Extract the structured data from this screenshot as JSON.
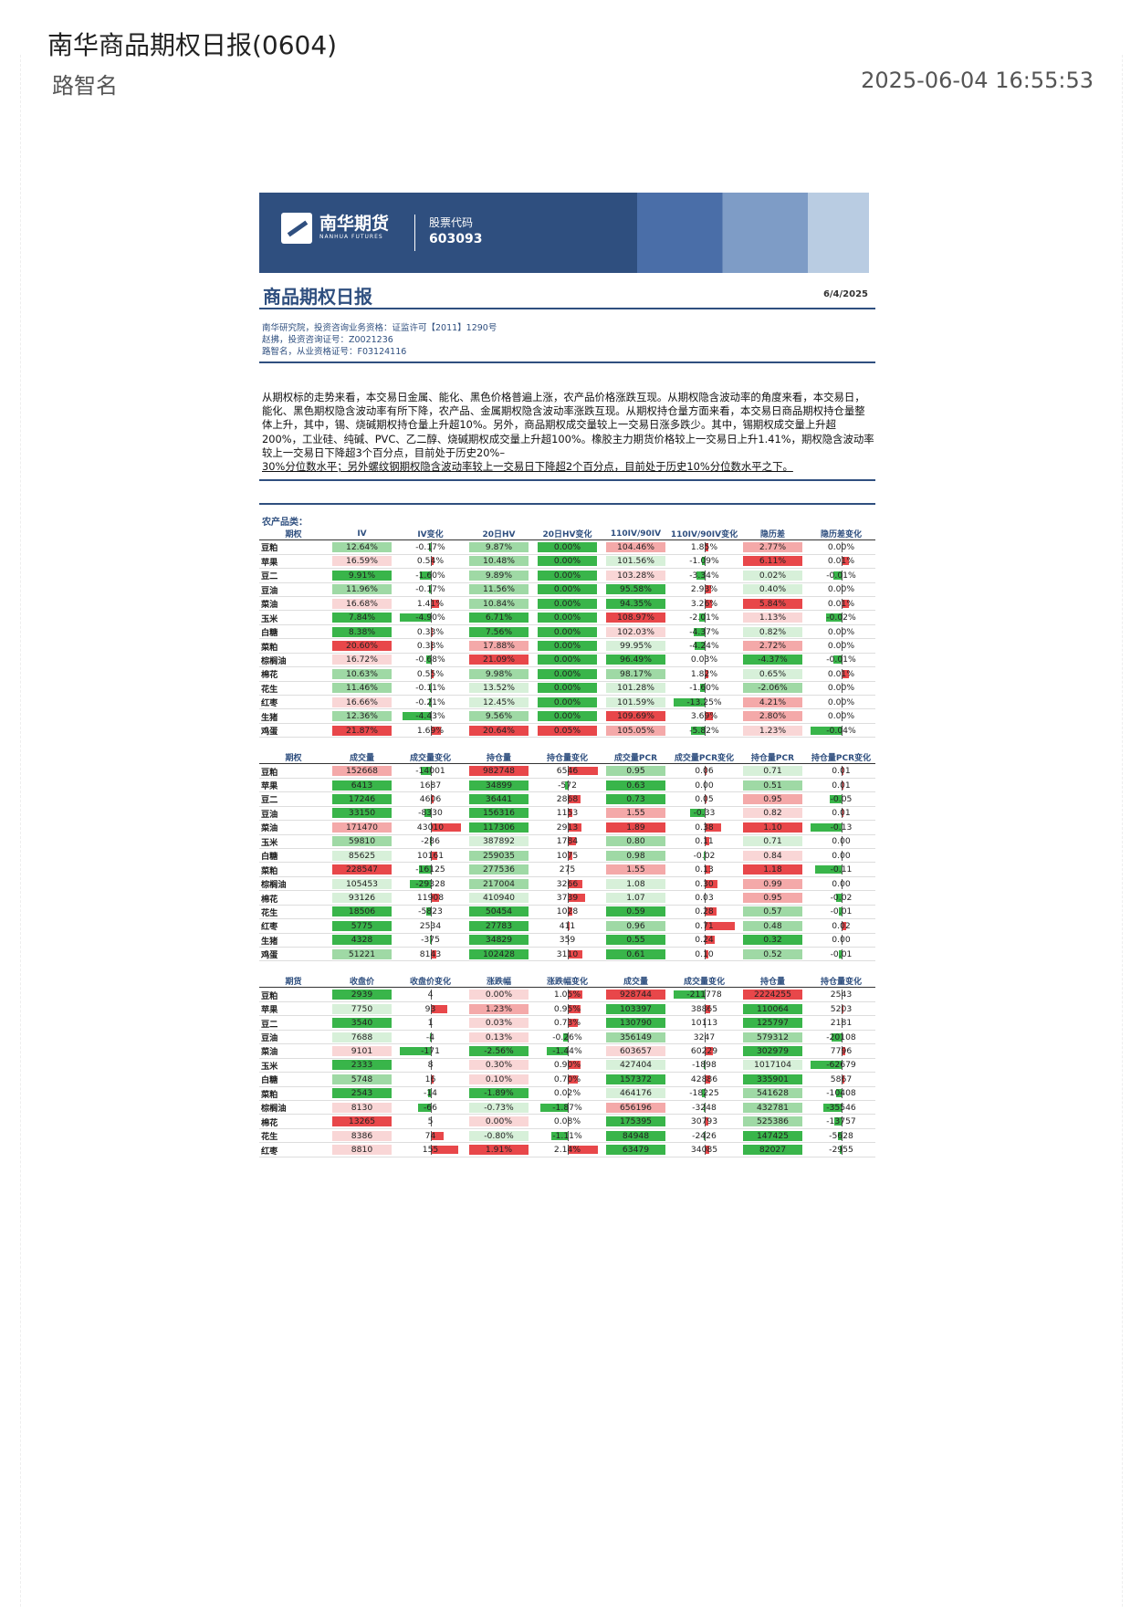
{
  "header": {
    "title": "南华商品期权日报(0604)",
    "author": "路智名",
    "datetime": "2025-06-04 16:55:53"
  },
  "banner": {
    "brand_cn": "南华期货",
    "brand_en": "NANHUA FUTURES",
    "stock_label": "股票代码",
    "stock_code": "603093"
  },
  "report": {
    "title": "商品期权日报",
    "date": "6/4/2025",
    "authors": [
      "南华研究院，投资咨询业务资格：证监许可【2011】1290号",
      "赵拂，投资咨询证号：Z0021236",
      "路智名，从业资格证号：F03124116"
    ],
    "summary_main": "从期权标的走势来看，本交易日金属、能化、黑色价格普遍上涨，农产品价格涨跌互现。从期权隐含波动率的角度来看，本交易日，能化、黑色期权隐含波动率有所下降，农产品、金属期权隐含波动率涨跌互现。从期权持仓量方面来看，本交易日商品期权持仓量整体上升，其中，锡、烧碱期权持仓量上升超10%。另外，商品期权成交量较上一交易日涨多跌少。其中，锡期权成交量上升超200%，工业硅、纯碱、PVC、乙二醇、烧碱期权成交量上升超100%。橡胶主力期货价格较上一交易日上升1.41%，期权隐含波动率较上一交易日下降超3个百分点，目前处于历史20%–",
    "summary_ul": "30%分位数水平；另外螺纹钢期权隐含波动率较上一交易日下降超2个百分点，目前处于历史10%分位数水平之下。"
  },
  "section_label": "农产品类：",
  "table1": {
    "headers": [
      "期权",
      "IV",
      "IV变化",
      "20日HV",
      "20日HV变化",
      "110IV/90IV",
      "110IV/90IV变化",
      "隐历差",
      "隐历差变化"
    ],
    "rows": [
      [
        "豆粕",
        "12.64%",
        "-0.17%",
        "9.87%",
        "0.00%",
        "104.46%",
        "1.85%",
        "2.77%",
        "0.00%"
      ],
      [
        "苹果",
        "16.59%",
        "0.54%",
        "10.48%",
        "0.00%",
        "101.56%",
        "-1.09%",
        "6.11%",
        "0.01%"
      ],
      [
        "豆二",
        "9.91%",
        "-1.60%",
        "9.89%",
        "0.00%",
        "103.28%",
        "-3.34%",
        "0.02%",
        "-0.01%"
      ],
      [
        "豆油",
        "11.96%",
        "-0.17%",
        "11.56%",
        "0.00%",
        "95.58%",
        "2.93%",
        "0.40%",
        "0.00%"
      ],
      [
        "菜油",
        "16.68%",
        "1.41%",
        "10.84%",
        "0.00%",
        "94.35%",
        "3.26%",
        "5.84%",
        "0.01%"
      ],
      [
        "玉米",
        "7.84%",
        "-4.90%",
        "6.71%",
        "0.00%",
        "108.97%",
        "-2.01%",
        "1.13%",
        "-0.02%"
      ],
      [
        "白糖",
        "8.38%",
        "0.33%",
        "7.56%",
        "0.00%",
        "102.03%",
        "-4.37%",
        "0.82%",
        "0.00%"
      ],
      [
        "菜粕",
        "20.60%",
        "0.38%",
        "17.88%",
        "0.00%",
        "99.95%",
        "-4.24%",
        "2.72%",
        "0.00%"
      ],
      [
        "棕榈油",
        "16.72%",
        "-0.68%",
        "21.09%",
        "0.00%",
        "96.49%",
        "0.03%",
        "-4.37%",
        "-0.01%"
      ],
      [
        "棉花",
        "10.63%",
        "0.55%",
        "9.98%",
        "0.00%",
        "98.17%",
        "1.82%",
        "0.65%",
        "0.01%"
      ],
      [
        "花生",
        "11.46%",
        "-0.11%",
        "13.52%",
        "0.00%",
        "101.28%",
        "-1.60%",
        "-2.06%",
        "0.00%"
      ],
      [
        "红枣",
        "16.66%",
        "-0.21%",
        "12.45%",
        "0.00%",
        "101.59%",
        "-13.25%",
        "4.21%",
        "0.00%"
      ],
      [
        "生猪",
        "12.36%",
        "-4.43%",
        "9.56%",
        "0.00%",
        "109.69%",
        "3.69%",
        "2.80%",
        "0.00%"
      ],
      [
        "鸡蛋",
        "21.87%",
        "1.69%",
        "20.64%",
        "0.05%",
        "105.05%",
        "-5.82%",
        "1.23%",
        "-0.04%"
      ]
    ]
  },
  "table2": {
    "headers": [
      "期权",
      "成交量",
      "成交量变化",
      "持仓量",
      "持仓量变化",
      "成交量PCR",
      "成交量PCR变化",
      "持仓量PCR",
      "持仓量PCR变化"
    ],
    "rows": [
      [
        "豆粕",
        "152668",
        "-14001",
        "982748",
        "6546",
        "0.95",
        "0.06",
        "0.71",
        "0.01"
      ],
      [
        "苹果",
        "6413",
        "1687",
        "34899",
        "-572",
        "0.63",
        "0.00",
        "0.51",
        "0.01"
      ],
      [
        "豆二",
        "17246",
        "4606",
        "36441",
        "2868",
        "0.73",
        "0.05",
        "0.95",
        "-0.05"
      ],
      [
        "豆油",
        "33150",
        "-8330",
        "156316",
        "1153",
        "1.55",
        "-0.33",
        "0.82",
        "0.01"
      ],
      [
        "菜油",
        "171470",
        "43010",
        "117306",
        "2913",
        "1.89",
        "0.38",
        "1.10",
        "-0.13"
      ],
      [
        "玉米",
        "59810",
        "-286",
        "387892",
        "1784",
        "0.80",
        "0.11",
        "0.71",
        "0.00"
      ],
      [
        "白糖",
        "85625",
        "10161",
        "259035",
        "1075",
        "0.98",
        "-0.02",
        "0.84",
        "0.00"
      ],
      [
        "菜粕",
        "228547",
        "-16125",
        "277536",
        "275",
        "1.55",
        "0.13",
        "1.18",
        "-0.11"
      ],
      [
        "棕榈油",
        "105453",
        "-29328",
        "217004",
        "3266",
        "1.08",
        "0.30",
        "0.99",
        "0.00"
      ],
      [
        "棉花",
        "93126",
        "11908",
        "410940",
        "3739",
        "1.07",
        "0.03",
        "0.95",
        "-0.02"
      ],
      [
        "花生",
        "18506",
        "-5823",
        "50454",
        "1028",
        "0.59",
        "0.28",
        "0.57",
        "-0.01"
      ],
      [
        "红枣",
        "5775",
        "2534",
        "27783",
        "411",
        "0.96",
        "0.71",
        "0.48",
        "0.02"
      ],
      [
        "生猪",
        "4328",
        "-375",
        "34829",
        "359",
        "0.55",
        "0.24",
        "0.32",
        "0.00"
      ],
      [
        "鸡蛋",
        "51221",
        "8143",
        "102428",
        "3110",
        "0.61",
        "0.10",
        "0.52",
        "-0.01"
      ]
    ]
  },
  "table3": {
    "headers": [
      "期货",
      "收盘价",
      "收盘价变化",
      "涨跌幅",
      "涨跌幅变化",
      "成交量",
      "成交量变化",
      "持仓量",
      "持仓量变化"
    ],
    "rows": [
      [
        "豆粕",
        "2939",
        "4",
        "0.00%",
        "1.05%",
        "928744",
        "-211778",
        "2224255",
        "2543"
      ],
      [
        "苹果",
        "7750",
        "93",
        "1.23%",
        "0.95%",
        "103397",
        "38865",
        "110064",
        "5203"
      ],
      [
        "豆二",
        "3540",
        "1",
        "0.03%",
        "0.73%",
        "130790",
        "10113",
        "125797",
        "2181"
      ],
      [
        "豆油",
        "7688",
        "-4",
        "0.13%",
        "-0.26%",
        "356149",
        "3247",
        "579312",
        "-20108"
      ],
      [
        "菜油",
        "9101",
        "-171",
        "-2.56%",
        "-1.44%",
        "603657",
        "60229",
        "302979",
        "7796"
      ],
      [
        "玉米",
        "2333",
        "8",
        "0.30%",
        "0.90%",
        "427404",
        "-1898",
        "1017104",
        "-62679"
      ],
      [
        "白糖",
        "5748",
        "16",
        "0.10%",
        "0.70%",
        "157372",
        "42886",
        "335901",
        "5867"
      ],
      [
        "菜粕",
        "2543",
        "-14",
        "-1.89%",
        "0.02%",
        "464176",
        "-18225",
        "541628",
        "-10408"
      ],
      [
        "棕榈油",
        "8130",
        "-66",
        "-0.73%",
        "-1.87%",
        "656196",
        "-3248",
        "432781",
        "-35546"
      ],
      [
        "棉花",
        "13265",
        "5",
        "0.00%",
        "0.08%",
        "175395",
        "30793",
        "525386",
        "-13757"
      ],
      [
        "花生",
        "8386",
        "74",
        "-0.80%",
        "-1.11%",
        "84948",
        "-2426",
        "147425",
        "-5628"
      ],
      [
        "红枣",
        "8810",
        "155",
        "1.91%",
        "2.14%",
        "63479",
        "34085",
        "82027",
        "-2955"
      ]
    ]
  }
}
